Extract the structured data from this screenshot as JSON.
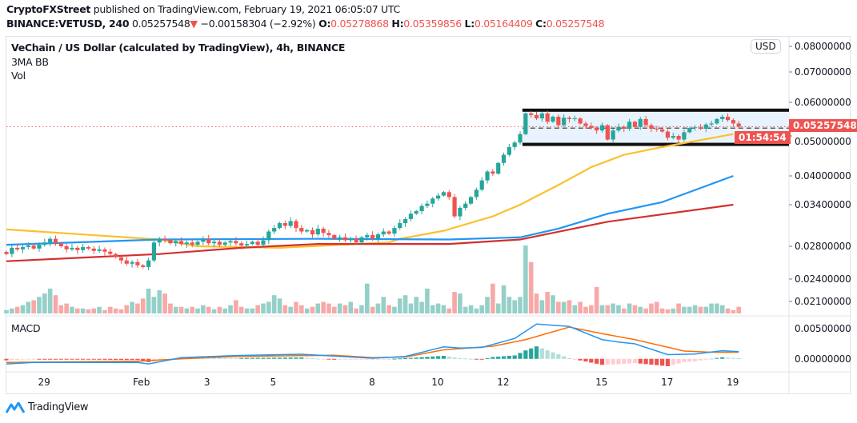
{
  "header": {
    "publisher": "CryptoFXStreet",
    "published_text": " published on TradingView.com, February 19, 2021 06:05:07 UTC",
    "symbol": "BINANCE:VETUSD, 240",
    "last": "0.05257548",
    "change_arrow": "▼",
    "change": "−0.00158304 (−2.92%)",
    "o_label": "O:",
    "o": "0.05278868",
    "h_label": "H:",
    "h": "0.05359856",
    "l_label": "L:",
    "l": "0.05164409",
    "c_label": "C:",
    "c": "0.05257548"
  },
  "legend": {
    "title": "VeChain / US Dollar (calculated by TradingView), 4h, BINANCE",
    "indicator1": "3MA BB",
    "indicator2": "Vol",
    "macd": "MACD"
  },
  "price_axis": {
    "currency_button": "USD",
    "ticks": [
      "0.08000000",
      "0.07000000",
      "0.06000000",
      "0.05000000",
      "0.04000000",
      "0.03400000",
      "0.02800000",
      "0.02400000",
      "0.02100000"
    ],
    "current_price": "0.05257548",
    "countdown": "01:54:54"
  },
  "macd_axis": {
    "ticks": [
      "0.00500000",
      "0.00000000"
    ]
  },
  "time_axis": {
    "ticks": [
      "29",
      "Feb",
      "3",
      "5",
      "8",
      "10",
      "12",
      "15",
      "17",
      "19"
    ]
  },
  "footer": {
    "brand": "TradingView"
  },
  "colors": {
    "up": "#26a69a",
    "down": "#ef5350",
    "vol_up": "#95d0c8",
    "vol_down": "#f7a9a7",
    "ma_fast": "#fbc02d",
    "ma_mid": "#2196f3",
    "ma_slow": "#d32f2f",
    "macd": "#2196f3",
    "signal": "#ff6d00",
    "box_fill": "#e8f3fd"
  },
  "chart_data": {
    "type": "candlestick",
    "interval": "4h",
    "y_scale": "log",
    "grid": false,
    "close": [
      0.027,
      0.0278,
      0.0276,
      0.0279,
      0.0281,
      0.0277,
      0.0282,
      0.0285,
      0.029,
      0.0284,
      0.028,
      0.0276,
      0.0278,
      0.0275,
      0.0279,
      0.0277,
      0.0274,
      0.0276,
      0.0273,
      0.027,
      0.0266,
      0.0262,
      0.0258,
      0.026,
      0.0256,
      0.0254,
      0.0262,
      0.0285,
      0.029,
      0.0288,
      0.0284,
      0.0287,
      0.0283,
      0.0285,
      0.0282,
      0.0286,
      0.029,
      0.0284,
      0.0286,
      0.0282,
      0.0285,
      0.0287,
      0.0284,
      0.0281,
      0.0283,
      0.0286,
      0.0282,
      0.0288,
      0.03,
      0.0305,
      0.0312,
      0.0308,
      0.0315,
      0.0305,
      0.03,
      0.0302,
      0.0296,
      0.0304,
      0.0298,
      0.0295,
      0.029,
      0.0292,
      0.0288,
      0.029,
      0.0285,
      0.0292,
      0.0295,
      0.029,
      0.0296,
      0.03,
      0.0297,
      0.0305,
      0.0312,
      0.0318,
      0.0326,
      0.033,
      0.0338,
      0.0342,
      0.0352,
      0.0358,
      0.0365,
      0.0355,
      0.0322,
      0.0335,
      0.0342,
      0.0355,
      0.037,
      0.039,
      0.041,
      0.0405,
      0.043,
      0.045,
      0.047,
      0.0482,
      0.0505,
      0.0565,
      0.056,
      0.055,
      0.0565,
      0.054,
      0.0555,
      0.053,
      0.0552,
      0.0548,
      0.055,
      0.0535,
      0.0528,
      0.0522,
      0.0515,
      0.053,
      0.049,
      0.0515,
      0.0525,
      0.052,
      0.054,
      0.0525,
      0.0548,
      0.053,
      0.052,
      0.0518,
      0.0512,
      0.0495,
      0.05,
      0.049,
      0.051,
      0.0522,
      0.0524,
      0.052,
      0.0532,
      0.0535,
      0.0548,
      0.0555,
      0.0545,
      0.0535,
      0.0526
    ],
    "volume_relative": [
      4,
      6,
      8,
      10,
      14,
      16,
      20,
      24,
      30,
      22,
      10,
      12,
      8,
      6,
      6,
      5,
      6,
      8,
      4,
      8,
      6,
      5,
      10,
      14,
      12,
      18,
      30,
      20,
      28,
      24,
      12,
      8,
      8,
      6,
      8,
      6,
      10,
      8,
      5,
      8,
      6,
      10,
      16,
      8,
      6,
      6,
      10,
      12,
      14,
      22,
      18,
      10,
      8,
      14,
      10,
      6,
      8,
      12,
      14,
      12,
      8,
      12,
      10,
      14,
      6,
      10,
      36,
      8,
      12,
      20,
      10,
      8,
      18,
      22,
      12,
      20,
      14,
      30,
      10,
      12,
      10,
      6,
      26,
      24,
      8,
      10,
      6,
      10,
      20,
      36,
      12,
      34,
      20,
      16,
      20,
      82,
      62,
      24,
      16,
      26,
      22,
      14,
      14,
      16,
      10,
      14,
      8,
      10,
      32,
      10,
      10,
      12,
      10,
      6,
      12,
      10,
      8,
      6,
      12,
      14,
      6,
      5,
      6,
      12,
      8,
      8,
      10,
      8,
      8,
      12,
      12,
      10,
      6,
      4,
      8
    ],
    "moving_averages": [
      {
        "points": [
          [
            0,
            0.0303
          ],
          [
            28,
            0.0289
          ],
          [
            35,
            0.028
          ],
          [
            50,
            0.0278
          ],
          [
            70,
            0.0285
          ],
          [
            72,
            0.029
          ],
          [
            80,
            0.0301
          ],
          [
            89,
            0.0322
          ],
          [
            94,
            0.034
          ],
          [
            101,
            0.038
          ],
          [
            107,
            0.042
          ],
          [
            113,
            0.045
          ],
          [
            120,
            0.047
          ],
          [
            133,
            0.0505
          ]
        ]
      },
      {
        "points": [
          [
            0,
            0.0282
          ],
          [
            28,
            0.0289
          ],
          [
            57,
            0.029
          ],
          [
            81,
            0.0289
          ],
          [
            94,
            0.0292
          ],
          [
            101,
            0.0304
          ],
          [
            110,
            0.0326
          ],
          [
            120,
            0.0345
          ],
          [
            133,
            0.04
          ]
        ]
      },
      {
        "points": [
          [
            0,
            0.0261
          ],
          [
            28,
            0.027
          ],
          [
            43,
            0.0278
          ],
          [
            57,
            0.0283
          ],
          [
            81,
            0.0283
          ],
          [
            94,
            0.0289
          ],
          [
            110,
            0.0314
          ],
          [
            133,
            0.034
          ]
        ]
      }
    ],
    "consolidation_box": {
      "top": 0.0575,
      "bottom": 0.0477,
      "mid": 0.0524,
      "start_index": 95
    },
    "macd": {
      "macd_line": [
        [
          0,
          -0.00085
        ],
        [
          5,
          -0.0006
        ],
        [
          24,
          -0.0006
        ],
        [
          26,
          -0.00085
        ],
        [
          32,
          0.0002
        ],
        [
          42,
          0.00055
        ],
        [
          54,
          0.00076
        ],
        [
          67,
          0.0001
        ],
        [
          73,
          0.0004
        ],
        [
          80,
          0.002
        ],
        [
          83,
          0.0018
        ],
        [
          87,
          0.0019
        ],
        [
          93,
          0.0034
        ],
        [
          97,
          0.0058
        ],
        [
          103,
          0.0054
        ],
        [
          109,
          0.0032
        ],
        [
          112,
          0.0028
        ],
        [
          115,
          0.0025
        ],
        [
          121,
          0.0007
        ],
        [
          126,
          0.0008
        ],
        [
          131,
          0.00135
        ],
        [
          134,
          0.0012
        ]
      ],
      "signal_line": [
        [
          0,
          -0.0006
        ],
        [
          24,
          -0.0004
        ],
        [
          32,
          0.0
        ],
        [
          42,
          0.0004
        ],
        [
          60,
          0.0006
        ],
        [
          67,
          0.0002
        ],
        [
          73,
          0.0003
        ],
        [
          80,
          0.0015
        ],
        [
          89,
          0.0021
        ],
        [
          95,
          0.0032
        ],
        [
          103,
          0.0053
        ],
        [
          109,
          0.0042
        ],
        [
          115,
          0.0032
        ],
        [
          124,
          0.0013
        ],
        [
          129,
          0.0011
        ],
        [
          134,
          0.0011
        ]
      ],
      "ylim": [
        -0.0015,
        0.0065
      ]
    }
  }
}
